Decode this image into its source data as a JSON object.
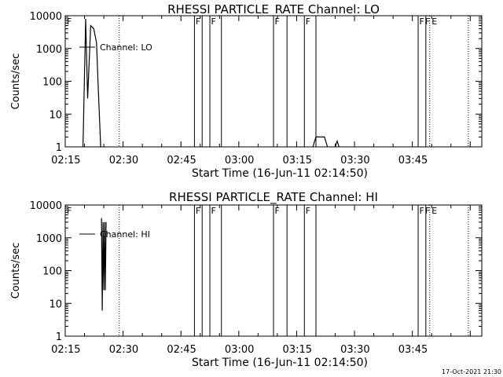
{
  "footer": {
    "timestamp": "17-Oct-2021 21:30"
  },
  "flag_labels": [
    "F",
    "F",
    "F",
    "F",
    "F",
    "F",
    "F",
    "E"
  ],
  "chart_data": [
    {
      "type": "line",
      "title": "RHESSI PARTICLE_RATE Channel: LO",
      "xlabel": "Start Time (16-Jun-11 02:14:50)",
      "ylabel": "Counts/sec",
      "legend": "Channel: LO",
      "scale": "log",
      "xlim_min": [
        0,
        108
      ],
      "ylim": [
        1,
        10000
      ],
      "xtick_labels": [
        "02:15",
        "02:30",
        "02:45",
        "03:00",
        "03:15",
        "03:30",
        "03:45"
      ],
      "ytick_labels": [
        "1",
        "10",
        "100",
        "1000",
        "10000"
      ],
      "series": [
        {
          "x_min": [
            4.6,
            5.3,
            5.8,
            6.6,
            7.4,
            8.1,
            8.6,
            9.2
          ],
          "y": [
            1,
            8000,
            30,
            5000,
            4000,
            1500,
            50,
            1
          ]
        },
        {
          "x_min": [
            64.2,
            65.0,
            67.2,
            68.0
          ],
          "y": [
            1,
            2,
            2,
            1
          ]
        },
        {
          "x_min": [
            70.0,
            70.5,
            71.0
          ],
          "y": [
            1,
            1.5,
            1
          ]
        }
      ],
      "dotted_lines_min": [
        14.0,
        94.5,
        104.5
      ],
      "flag_lines_min": [
        33.5,
        35.5,
        37.5,
        40.5,
        54.0,
        57.5,
        62.0,
        65.0,
        91.5,
        93.5
      ]
    },
    {
      "type": "line",
      "title": "RHESSI PARTICLE_RATE Channel: HI",
      "xlabel": "Start Time (16-Jun-11 02:14:50)",
      "ylabel": "Counts/sec",
      "legend": "Channel: HI",
      "scale": "log",
      "xlim_min": [
        0,
        108
      ],
      "ylim": [
        1,
        10000
      ],
      "xtick_labels": [
        "02:15",
        "02:30",
        "02:45",
        "03:00",
        "03:15",
        "03:30",
        "03:45"
      ],
      "ytick_labels": [
        "1",
        "10",
        "100",
        "1000",
        "10000"
      ],
      "series": [
        {
          "x_min": [
            9.4,
            9.6,
            9.8,
            10.0,
            10.2,
            10.4,
            10.6
          ],
          "y": [
            4000,
            6,
            3000,
            25,
            3000,
            25,
            3000
          ]
        }
      ],
      "dotted_lines_min": [
        14.0,
        94.5,
        104.5
      ],
      "flag_lines_min": [
        33.5,
        35.5,
        37.5,
        40.5,
        54.0,
        57.5,
        62.0,
        65.0,
        91.5,
        93.5
      ]
    }
  ]
}
